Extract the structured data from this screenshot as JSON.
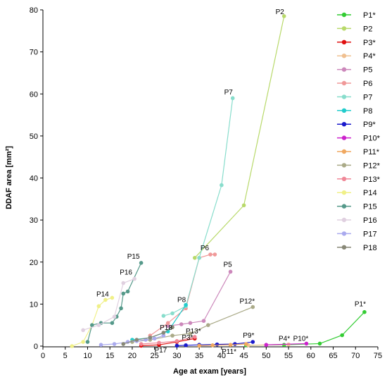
{
  "chart_data": {
    "type": "line",
    "xlabel": "Age at exam [years]",
    "ylabel": "DDAF area [mm²]",
    "xlim": [
      0,
      75
    ],
    "ylim": [
      0,
      80
    ],
    "x_ticks": [
      0,
      5,
      10,
      15,
      20,
      25,
      30,
      35,
      40,
      45,
      50,
      55,
      60,
      65,
      70,
      75
    ],
    "y_ticks": [
      0,
      10,
      20,
      30,
      40,
      50,
      60,
      70,
      80
    ],
    "legend_position": "right",
    "series": [
      {
        "name": "P1*",
        "label": "P1*",
        "color": "#33cc33",
        "x": [
          45.5,
          54,
          62,
          67,
          72
        ],
        "y": [
          0.2,
          0.3,
          0.6,
          2.6,
          8.1
        ]
      },
      {
        "name": "P2",
        "label": "P2",
        "color": "#b8d96a",
        "x": [
          34,
          45,
          54
        ],
        "y": [
          21,
          33.5,
          78.5
        ]
      },
      {
        "name": "P3*",
        "label": "P3*",
        "color": "#e01010",
        "x": [
          22,
          26,
          30,
          34
        ],
        "y": [
          0.1,
          0.3,
          1,
          1.8
        ]
      },
      {
        "name": "P4*",
        "label": "P4*",
        "color": "#f0c090",
        "x": [
          46,
          55
        ],
        "y": [
          0.2,
          0.4
        ]
      },
      {
        "name": "P5",
        "label": "P5",
        "color": "#cc88bb",
        "x": [
          28,
          31,
          33,
          36,
          42
        ],
        "y": [
          4.8,
          5.2,
          5.5,
          6,
          17.7
        ]
      },
      {
        "name": "P6",
        "label": "P6",
        "color": "#f09999",
        "x": [
          24,
          28,
          32,
          35,
          37.5,
          38.5
        ],
        "y": [
          2.5,
          5.5,
          9,
          21,
          21.8,
          21.8
        ]
      },
      {
        "name": "P7",
        "label": "P7",
        "color": "#88ddcc",
        "x": [
          27,
          29,
          32,
          35,
          40,
          42.5
        ],
        "y": [
          7.2,
          7.8,
          9.5,
          21,
          38.3,
          59
        ]
      },
      {
        "name": "P8",
        "label": "P8",
        "color": "#22cccc",
        "x": [
          20,
          24,
          28,
          32
        ],
        "y": [
          1.5,
          2,
          3.5,
          9.8
        ]
      },
      {
        "name": "P9*",
        "label": "P9*",
        "color": "#1a1acc",
        "x": [
          30,
          32,
          35,
          39,
          43,
          47
        ],
        "y": [
          0.1,
          0.2,
          0.3,
          0.4,
          0.5,
          1
        ]
      },
      {
        "name": "P10*",
        "label": "P10*",
        "color": "#cc22cc",
        "x": [
          50,
          59
        ],
        "y": [
          0.3,
          0.6
        ]
      },
      {
        "name": "P11*",
        "label": "P11*",
        "color": "#f0a860",
        "x": [
          35,
          38,
          42,
          45.5
        ],
        "y": [
          0.1,
          0.2,
          0.3,
          0.5
        ]
      },
      {
        "name": "P12*",
        "label": "P12*",
        "color": "#aaaa88",
        "x": [
          20,
          24,
          29,
          33,
          37,
          47
        ],
        "y": [
          1,
          1.5,
          2.5,
          3,
          5,
          9.3
        ]
      },
      {
        "name": "P13*",
        "label": "P13*",
        "color": "#f08898",
        "x": [
          22,
          26,
          30,
          34
        ],
        "y": [
          0.5,
          0.8,
          1.2,
          2.2
        ]
      },
      {
        "name": "P14",
        "label": "P14",
        "color": "#f0f088",
        "x": [
          6.5,
          9,
          11,
          12.5,
          14,
          15.5
        ],
        "y": [
          0,
          1,
          5,
          9.5,
          11,
          11.5
        ]
      },
      {
        "name": "P15",
        "label": "P15",
        "color": "#55998a",
        "x": [
          10,
          11,
          13,
          15.5,
          16.5,
          17.5,
          18,
          19,
          22
        ],
        "y": [
          1,
          5,
          5.5,
          5.5,
          7,
          9,
          12.5,
          13,
          19.8
        ]
      },
      {
        "name": "P16",
        "label": "P16",
        "color": "#e0d0e0",
        "x": [
          9,
          12.5,
          16,
          18,
          20.5
        ],
        "y": [
          3.8,
          5,
          7,
          15,
          16
        ]
      },
      {
        "name": "P17",
        "label": "P17",
        "color": "#aaaaee",
        "x": [
          13,
          16,
          19,
          21,
          23,
          25,
          27
        ],
        "y": [
          0.3,
          0.5,
          1,
          1.2,
          1.5,
          1.8,
          2.5
        ]
      },
      {
        "name": "P18",
        "label": "P18",
        "color": "#888877",
        "x": [
          18,
          21,
          24,
          27,
          29
        ],
        "y": [
          0.5,
          1.5,
          2,
          3.2,
          4.5
        ]
      }
    ]
  }
}
